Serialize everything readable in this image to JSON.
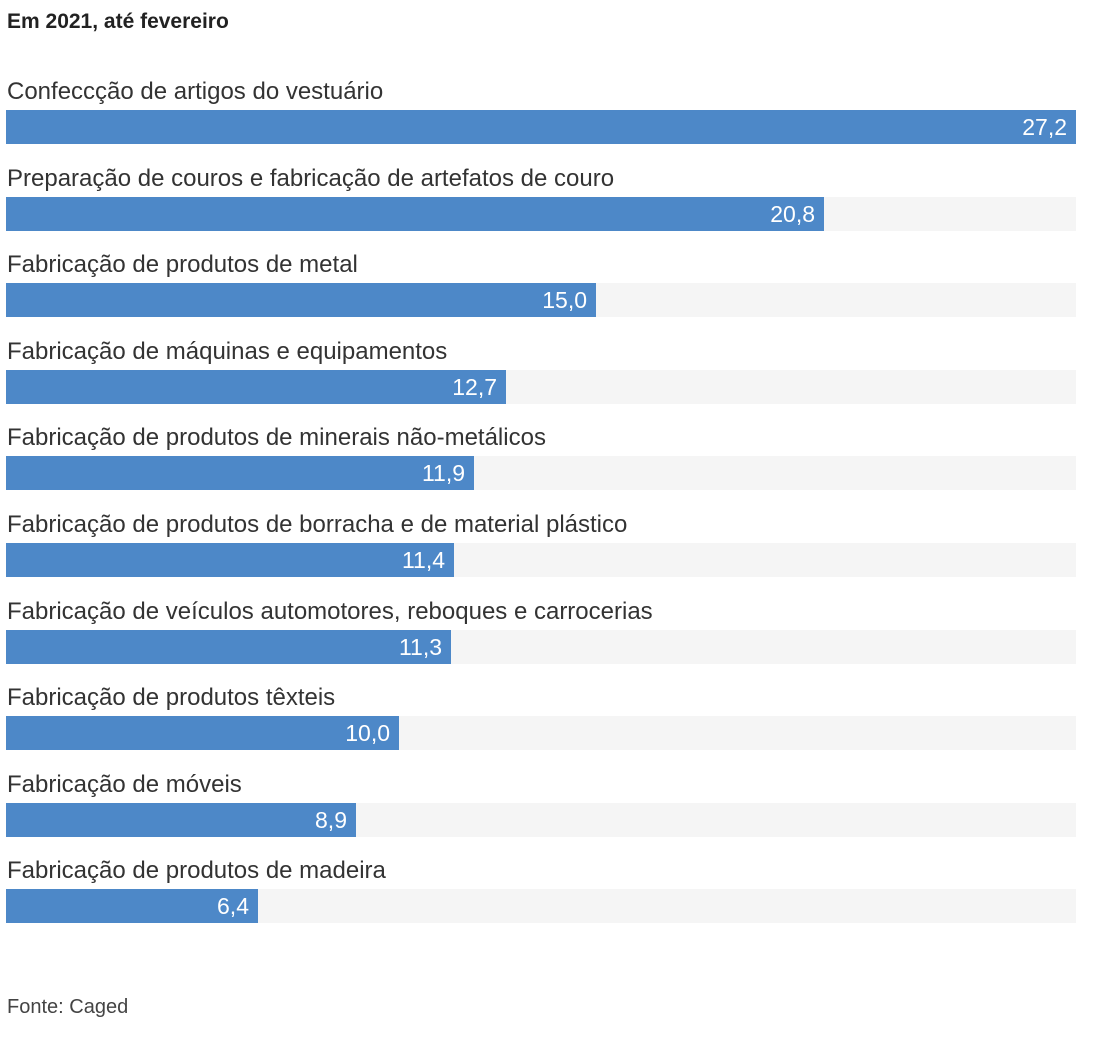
{
  "chart_data": {
    "type": "bar",
    "orientation": "horizontal",
    "title": "Em 2021, até fevereiro",
    "categories": [
      "Confeccção de artigos do vestuário",
      "Preparação de couros e fabricação de artefatos de couro",
      "Fabricação de produtos de metal",
      "Fabricação de máquinas e equipamentos",
      "Fabricação de produtos de minerais não-metálicos",
      "Fabricação de produtos de borracha e de material plástico",
      "Fabricação de veículos automotores, reboques e carrocerias",
      "Fabricação de produtos têxteis",
      "Fabricação de móveis",
      "Fabricação de produtos de madeira"
    ],
    "values": [
      27.2,
      20.8,
      15.0,
      12.7,
      11.9,
      11.4,
      11.3,
      10.0,
      8.9,
      6.4
    ],
    "value_labels": [
      "27,2",
      "20,8",
      "15,0",
      "12,7",
      "11,9",
      "11,4",
      "11,3",
      "10,0",
      "8,9",
      "6,4"
    ],
    "xlim": [
      0,
      27.2
    ],
    "grid": false,
    "legend": "none",
    "bar_color": "#4d88c8",
    "track_color": "#f5f5f5"
  },
  "source": "Fonte: Caged"
}
